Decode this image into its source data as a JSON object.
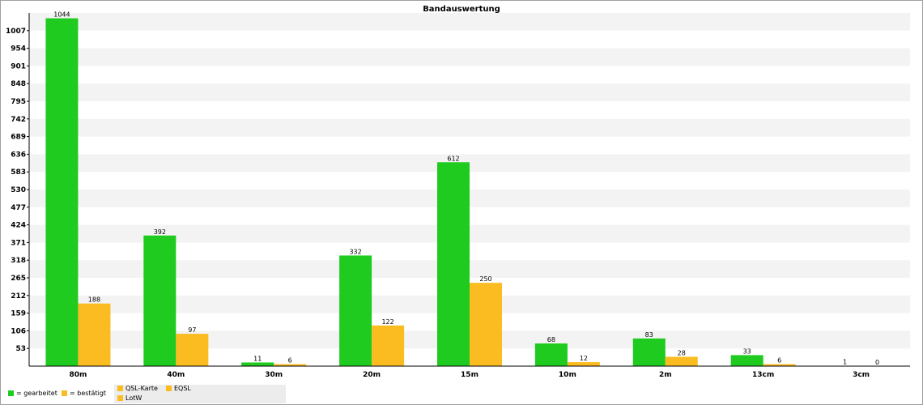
{
  "chart_data": {
    "type": "bar",
    "title": "Bandauswertung",
    "categories": [
      "80m",
      "40m",
      "30m",
      "20m",
      "15m",
      "10m",
      "2m",
      "13cm",
      "3cm"
    ],
    "series": [
      {
        "name": "gearbeitet",
        "values": [
          1044,
          392,
          11,
          332,
          612,
          68,
          83,
          33,
          1
        ],
        "color": "#1ecb1e"
      },
      {
        "name": "bestätigt",
        "values": [
          188,
          97,
          6,
          122,
          250,
          12,
          28,
          6,
          0
        ],
        "color": "#fbbc22"
      }
    ],
    "y_ticks": [
      53,
      106,
      159,
      212,
      265,
      318,
      371,
      424,
      477,
      530,
      583,
      636,
      689,
      742,
      795,
      848,
      901,
      954,
      1007
    ],
    "ylim": [
      0,
      1060
    ],
    "grid": true
  },
  "legend": {
    "worked_label": "= gearbeitet",
    "confirmed_label": "= bestätigt",
    "sources": [
      "QSL-Karte",
      "EQSL",
      "LotW"
    ],
    "worked_color": "#1ecb1e",
    "confirmed_color": "#fbbc22"
  }
}
